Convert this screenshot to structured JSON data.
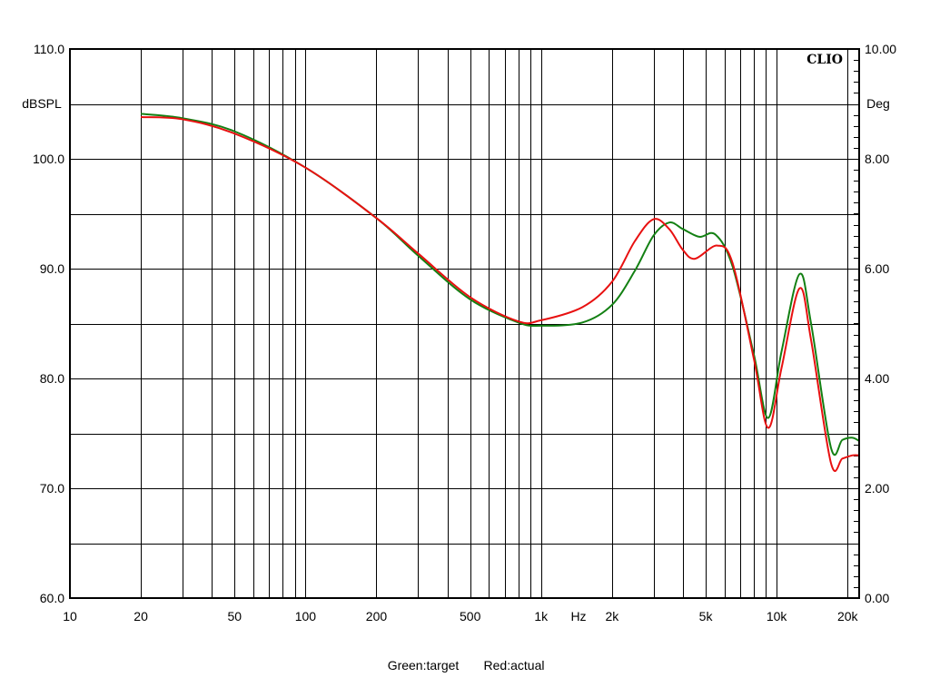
{
  "chart_data": {
    "type": "line",
    "title": "",
    "brand": "CLIO",
    "xlabel": "Hz",
    "ylabel": "dBSPL",
    "y2label": "Deg",
    "x_scale": "log",
    "xlim": [
      10,
      22400
    ],
    "ylim": [
      60,
      110
    ],
    "y2lim": [
      0,
      10
    ],
    "grid": true,
    "x_ticks": [
      {
        "v": 10,
        "label": "10"
      },
      {
        "v": 20,
        "label": "20"
      },
      {
        "v": 50,
        "label": "50"
      },
      {
        "v": 100,
        "label": "100"
      },
      {
        "v": 200,
        "label": "200"
      },
      {
        "v": 500,
        "label": "500"
      },
      {
        "v": 1000,
        "label": "1k"
      },
      {
        "v": 2000,
        "label": "2k"
      },
      {
        "v": 5000,
        "label": "5k"
      },
      {
        "v": 10000,
        "label": "10k"
      },
      {
        "v": 20000,
        "label": "20k"
      }
    ],
    "y_ticks": [
      {
        "v": 110,
        "label": "110.0"
      },
      {
        "v": 100,
        "label": "100.0"
      },
      {
        "v": 90,
        "label": "90.0"
      },
      {
        "v": 80,
        "label": "80.0"
      },
      {
        "v": 70,
        "label": "70.0"
      },
      {
        "v": 60,
        "label": "60.0"
      }
    ],
    "y2_ticks": [
      {
        "v": 10,
        "label": "10.00"
      },
      {
        "v": 8,
        "label": "8.00"
      },
      {
        "v": 6,
        "label": "6.00"
      },
      {
        "v": 4,
        "label": "4.00"
      },
      {
        "v": 2,
        "label": "2.00"
      },
      {
        "v": 0,
        "label": "0.00"
      }
    ],
    "legend": {
      "position": "bottom",
      "text_green": "Green:target",
      "text_red": "Red:actual"
    },
    "series": [
      {
        "name": "target",
        "color": "#138013",
        "x": [
          20,
          30,
          50,
          100,
          200,
          300,
          500,
          800,
          1000,
          1500,
          2000,
          2500,
          3000,
          3500,
          4000,
          4700,
          5500,
          6500,
          8000,
          9200,
          10500,
          12500,
          14000,
          17000,
          19000,
          21000,
          22400
        ],
        "y": [
          104.1,
          103.7,
          102.5,
          99.2,
          94.6,
          91.2,
          87.2,
          85.1,
          84.8,
          85.1,
          86.7,
          89.8,
          93.0,
          94.2,
          93.6,
          92.9,
          93.1,
          90.2,
          82.2,
          76.4,
          82.5,
          89.5,
          85.0,
          73.7,
          74.4,
          74.6,
          74.3
        ]
      },
      {
        "name": "actual",
        "color": "#e81010",
        "x": [
          20,
          30,
          50,
          100,
          200,
          300,
          500,
          800,
          1000,
          1500,
          2000,
          2500,
          3000,
          3500,
          4000,
          4500,
          5600,
          6500,
          8000,
          9200,
          10500,
          12500,
          14000,
          17000,
          19000,
          21000,
          22400
        ],
        "y": [
          103.8,
          103.6,
          102.3,
          99.2,
          94.6,
          91.4,
          87.4,
          85.2,
          85.3,
          86.5,
          88.8,
          92.5,
          94.5,
          93.6,
          91.7,
          90.9,
          92.1,
          90.5,
          81.8,
          75.5,
          81.0,
          88.2,
          83.5,
          72.3,
          72.7,
          73.0,
          73.0
        ]
      }
    ]
  }
}
